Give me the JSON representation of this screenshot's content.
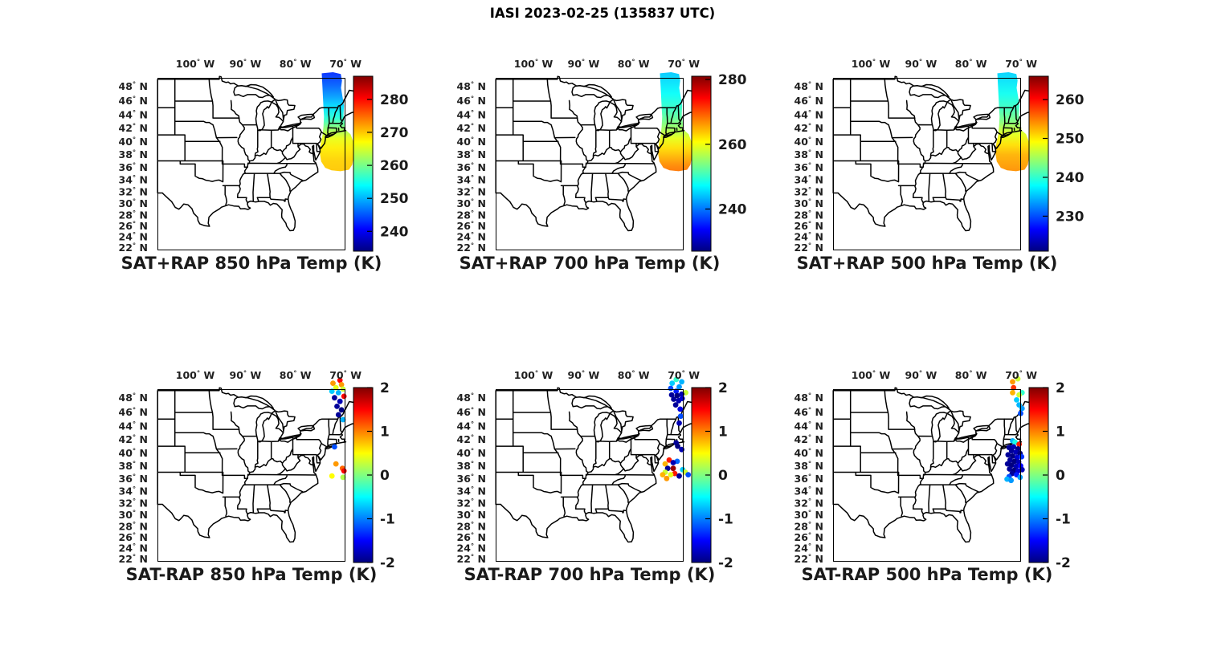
{
  "suptitle": "IASI 2023-02-25 (135837 UTC)",
  "colors": {
    "background": "#ffffff",
    "map_line": "#000000",
    "tick_text": "#1f1f1f",
    "colorbar_text": "#1a1a1a"
  },
  "axes": {
    "lon_ticks": [
      {
        "value": -100,
        "label": "100° W"
      },
      {
        "value": -90,
        "label": "90° W"
      },
      {
        "value": -80,
        "label": "80° W"
      },
      {
        "value": -70,
        "label": "70° W"
      }
    ],
    "lat_ticks": [
      {
        "value": 48,
        "label": "48° N"
      },
      {
        "value": 46,
        "label": "46° N"
      },
      {
        "value": 44,
        "label": "44° N"
      },
      {
        "value": 42,
        "label": "42° N"
      },
      {
        "value": 40,
        "label": "40° N"
      },
      {
        "value": 38,
        "label": "38° N"
      },
      {
        "value": 36,
        "label": "36° N"
      },
      {
        "value": 34,
        "label": "34° N"
      },
      {
        "value": 32,
        "label": "32° N"
      },
      {
        "value": 30,
        "label": "30° N"
      },
      {
        "value": 28,
        "label": "28° N"
      },
      {
        "value": 26,
        "label": "26° N"
      },
      {
        "value": 24,
        "label": "24° N"
      },
      {
        "value": 22,
        "label": "22° N"
      }
    ]
  },
  "chart_data": {
    "type": "map-swath-and-scatter-grid",
    "colormap": "jet",
    "map_extent": {
      "lon_min": -107.5,
      "lon_max": -70.0,
      "lat_min": 21.5,
      "lat_max": 49.2
    },
    "panels": [
      {
        "id": "sat-plus-rap-850",
        "title": "SAT+RAP 850 hPa Temp (K)",
        "kind": "swath",
        "clim": [
          234,
          287
        ],
        "colorbar_ticks": [
          280,
          270,
          260,
          250,
          240
        ],
        "swath_lat_temp": [
          [
            49.8,
            243
          ],
          [
            48,
            246
          ],
          [
            46.5,
            249
          ],
          [
            45,
            252.5
          ],
          [
            43.5,
            256
          ],
          [
            42.5,
            259.5
          ],
          [
            41.5,
            263
          ],
          [
            40.5,
            266
          ],
          [
            39,
            268
          ],
          [
            37,
            269.5
          ],
          [
            35.4,
            270
          ]
        ]
      },
      {
        "id": "sat-plus-rap-700",
        "title": "SAT+RAP 700 hPa Temp (K)",
        "kind": "swath",
        "clim": [
          227,
          281
        ],
        "colorbar_ticks": [
          280,
          260,
          240
        ],
        "swath_lat_temp": [
          [
            49.8,
            244.5
          ],
          [
            47,
            247.5
          ],
          [
            45,
            250
          ],
          [
            43.5,
            252.5
          ],
          [
            42,
            255.5
          ],
          [
            40.5,
            259.5
          ],
          [
            39,
            262.5
          ],
          [
            37.5,
            265
          ],
          [
            36.3,
            267
          ],
          [
            35.4,
            268
          ]
        ]
      },
      {
        "id": "sat-plus-rap-500",
        "title": "SAT+RAP 500 hPa Temp (K)",
        "kind": "swath",
        "clim": [
          221,
          266
        ],
        "colorbar_ticks": [
          260,
          250,
          240,
          230
        ],
        "swath_lat_temp": [
          [
            49.8,
            236
          ],
          [
            47,
            238.5
          ],
          [
            45,
            240.5
          ],
          [
            43,
            243.5
          ],
          [
            42,
            246
          ],
          [
            41,
            248
          ],
          [
            39.5,
            250.5
          ],
          [
            38,
            252.5
          ],
          [
            35.4,
            254
          ]
        ]
      },
      {
        "id": "sat-minus-rap-850",
        "title": "SAT-RAP 850 hPa Temp (K)",
        "kind": "scatter",
        "clim": [
          -2,
          2
        ],
        "colorbar_ticks": [
          2,
          1,
          0,
          -1,
          -2
        ],
        "points": [
          [
            -71.1,
            50.4,
            1.5
          ],
          [
            -72.5,
            50.0,
            0.9
          ],
          [
            -70.8,
            49.8,
            0.9
          ],
          [
            -71.9,
            49.4,
            0.4
          ],
          [
            -70.5,
            49.2,
            0.3
          ],
          [
            -72.7,
            48.9,
            -0.7
          ],
          [
            -71.4,
            48.7,
            -0.8
          ],
          [
            -70.3,
            48.2,
            1.5
          ],
          [
            -72.2,
            48.0,
            -1.9
          ],
          [
            -71.1,
            47.5,
            -1.8
          ],
          [
            -71.7,
            46.8,
            -1.9
          ],
          [
            -70.8,
            46.3,
            -2.0
          ],
          [
            -71.4,
            45.6,
            -1.9
          ],
          [
            -70.5,
            44.9,
            -0.8
          ],
          [
            -72.2,
            40.9,
            -1.2
          ],
          [
            -71.9,
            38.3,
            0.9
          ],
          [
            -70.6,
            37.6,
            1.1
          ],
          [
            -70.3,
            37.2,
            1.5
          ],
          [
            -72.7,
            36.4,
            0.5
          ],
          [
            -70.5,
            36.2,
            0.2
          ]
        ]
      },
      {
        "id": "sat-minus-rap-700",
        "title": "SAT-RAP 700 hPa Temp (K)",
        "kind": "scatter",
        "clim": [
          -2,
          2
        ],
        "colorbar_ticks": [
          2,
          1,
          0,
          -1,
          -2
        ],
        "points": [
          [
            -71.5,
            50.5,
            -0.3
          ],
          [
            -70.4,
            50.2,
            -0.8
          ],
          [
            -72.3,
            50.0,
            -0.7
          ],
          [
            -70.9,
            49.5,
            -0.9
          ],
          [
            -72.6,
            49.3,
            -1.2
          ],
          [
            -71.5,
            48.9,
            -1.4
          ],
          [
            -69.6,
            48.7,
            0.3
          ],
          [
            -72.4,
            48.4,
            -1.9
          ],
          [
            -71.3,
            48.3,
            -2.0
          ],
          [
            -70.4,
            48.5,
            -1.8
          ],
          [
            -72.0,
            47.8,
            -1.9
          ],
          [
            -71.0,
            47.6,
            -1.8
          ],
          [
            -70.3,
            47.9,
            -1.7
          ],
          [
            -71.6,
            47.0,
            -1.9
          ],
          [
            -70.7,
            46.4,
            -1.6
          ],
          [
            -70.6,
            45.4,
            -1.2
          ],
          [
            -70.9,
            44.4,
            -1.8
          ],
          [
            -71.5,
            41.5,
            -1.9
          ],
          [
            -71.2,
            41.0,
            -2.0
          ],
          [
            -70.4,
            40.5,
            -1.8
          ],
          [
            -72.9,
            38.9,
            1.4
          ],
          [
            -71.3,
            38.7,
            -1.1
          ],
          [
            -72.1,
            38.5,
            -1.8
          ],
          [
            -73.7,
            38.3,
            0.8
          ],
          [
            -73.2,
            37.6,
            -1.9
          ],
          [
            -72.1,
            37.6,
            1.9
          ],
          [
            -70.2,
            37.4,
            -0.7
          ],
          [
            -73.7,
            37.0,
            0.3
          ],
          [
            -69.7,
            37.0,
            0.3
          ],
          [
            -71.8,
            36.8,
            1.4
          ],
          [
            -74.2,
            36.6,
            0.8
          ],
          [
            -72.6,
            36.6,
            0.4
          ],
          [
            -69.1,
            36.6,
            -1.2
          ],
          [
            -70.9,
            36.4,
            -1.9
          ],
          [
            -73.4,
            36.0,
            0.9
          ]
        ]
      },
      {
        "id": "sat-minus-rap-500",
        "title": "SAT-RAP 500 hPa Temp (K)",
        "kind": "scatter",
        "clim": [
          -2,
          2
        ],
        "colorbar_ticks": [
          2,
          1,
          0,
          -1,
          -2
        ],
        "points": [
          [
            -70.65,
            50.6,
            0.3
          ],
          [
            -71.7,
            50.2,
            0.9
          ],
          [
            -71.5,
            49.4,
            1.3
          ],
          [
            -71.7,
            48.7,
            0.8
          ],
          [
            -69.8,
            48.7,
            -0.3
          ],
          [
            -70.4,
            48.4,
            0.3
          ],
          [
            -70.9,
            47.7,
            -0.7
          ],
          [
            -70.4,
            47.0,
            -0.8
          ],
          [
            -69.8,
            46.5,
            -0.9
          ],
          [
            -70.1,
            45.8,
            -1.2
          ],
          [
            -71.7,
            41.8,
            -0.8
          ],
          [
            -71.2,
            41.6,
            -0.4
          ],
          [
            -70.4,
            41.3,
            1.4
          ],
          [
            -72.4,
            40.8,
            -1.9
          ],
          [
            -71.5,
            40.9,
            -1.8
          ],
          [
            -70.6,
            40.6,
            -2.0
          ],
          [
            -71.9,
            40.3,
            -1.9
          ],
          [
            -71.0,
            40.1,
            -1.8
          ],
          [
            -70.2,
            39.9,
            -2.0
          ],
          [
            -72.6,
            39.7,
            -1.9
          ],
          [
            -71.7,
            39.5,
            -2.0
          ],
          [
            -70.8,
            39.3,
            -1.7
          ],
          [
            -69.9,
            39.4,
            -1.3
          ],
          [
            -72.2,
            38.9,
            -1.9
          ],
          [
            -71.3,
            38.7,
            -2.0
          ],
          [
            -70.5,
            38.6,
            -1.8
          ],
          [
            -72.7,
            38.3,
            -1.9
          ],
          [
            -71.9,
            38.1,
            -2.0
          ],
          [
            -71.0,
            37.9,
            -1.8
          ],
          [
            -70.1,
            38.0,
            -1.5
          ],
          [
            -72.3,
            37.5,
            -1.9
          ],
          [
            -71.4,
            37.3,
            -2.0
          ],
          [
            -70.6,
            37.2,
            -1.7
          ],
          [
            -69.8,
            37.4,
            -1.8
          ],
          [
            -71.8,
            36.8,
            -1.9
          ],
          [
            -70.9,
            36.6,
            -1.4
          ],
          [
            -72.4,
            36.3,
            -1.2
          ],
          [
            -70.2,
            36.2,
            -0.9
          ],
          [
            -72.8,
            35.9,
            -0.8
          ],
          [
            -72.0,
            35.7,
            -0.9
          ]
        ]
      }
    ]
  }
}
